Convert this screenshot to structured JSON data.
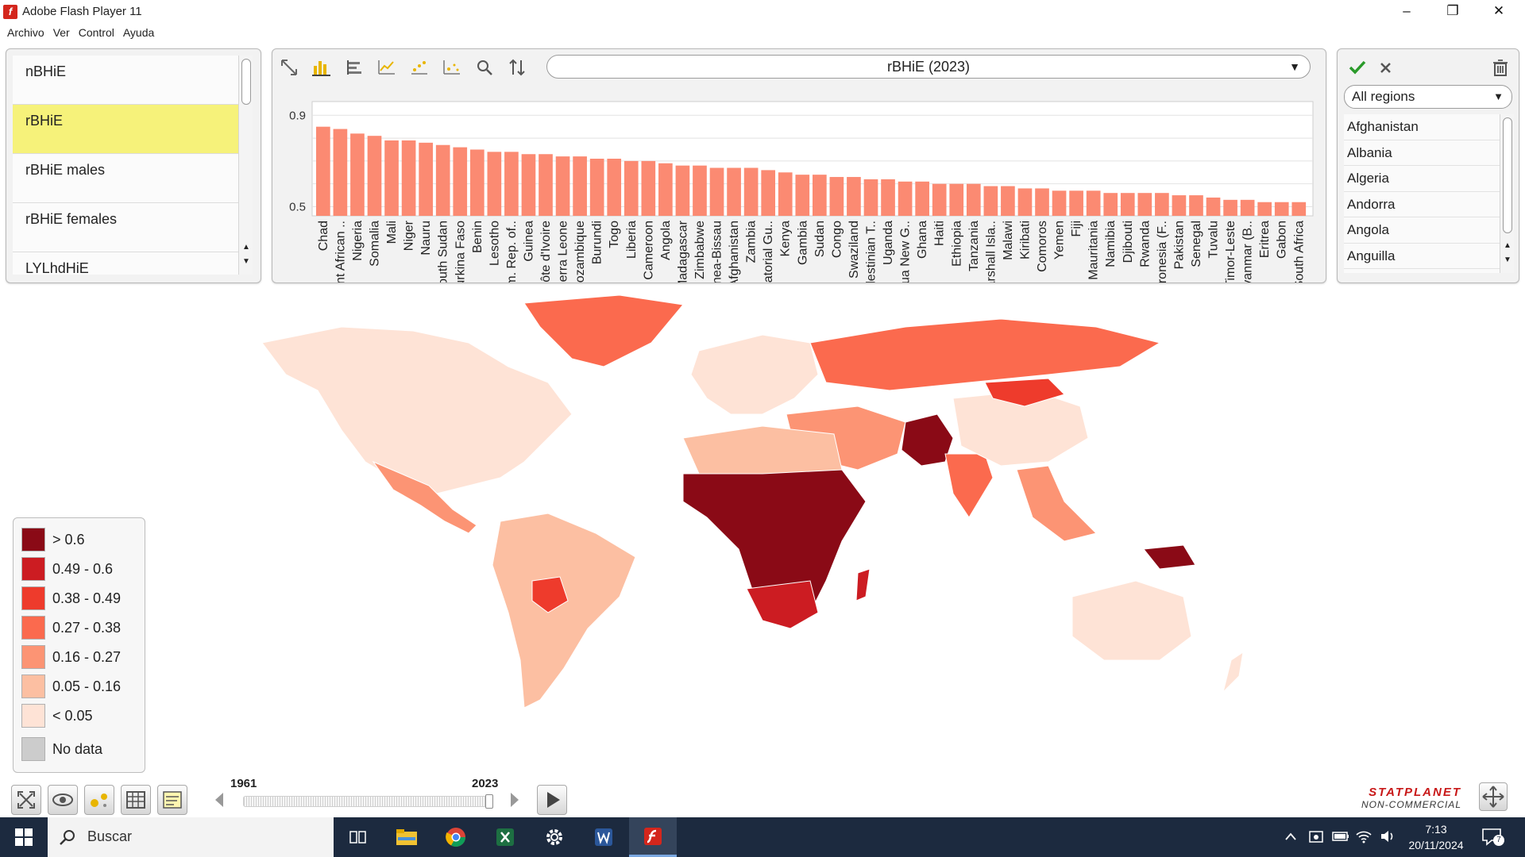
{
  "window": {
    "title": "Adobe Flash Player 11",
    "app_icon_glyph": "f"
  },
  "menu": [
    "Archivo",
    "Ver",
    "Control",
    "Ayuda"
  ],
  "indicators": {
    "items": [
      "nBHiE",
      "rBHiE",
      "rBHiE males",
      "rBHiE females",
      "LYLhdHiE"
    ],
    "selected_index": 1
  },
  "chart_toolbar": {
    "indicator_label": "rBHiE (2023)",
    "icons": [
      "fit-icon",
      "bar-chart-icon",
      "horizontal-bar-icon",
      "line-chart-icon",
      "scatter-icon",
      "bubble-icon",
      "zoom-icon",
      "sort-icon"
    ],
    "active_icon": "bar-chart-icon"
  },
  "chart_data": {
    "type": "bar",
    "title": "",
    "xlabel": "",
    "ylabel": "",
    "y_ticks": [
      "0.9",
      "0.5"
    ],
    "ylim": [
      0.46,
      0.96
    ],
    "categories": [
      "Chad",
      "Cent African ..",
      "Nigeria",
      "Somalia",
      "Mali",
      "Niger",
      "Nauru",
      "South Sudan",
      "Burkina Faso",
      "Benin",
      "Lesotho",
      "Dem. Rep. of..",
      "Guinea",
      "Côte d'Ivoire",
      "Sierra Leone",
      "Mozambique",
      "Burundi",
      "Togo",
      "Liberia",
      "Cameroon",
      "Angola",
      "Madagascar",
      "Zimbabwe",
      "Guinea-Bissau",
      "Afghanistan",
      "Zambia",
      "Equatorial Gu..",
      "Kenya",
      "Gambia",
      "Sudan",
      "Congo",
      "Swaziland",
      "Palestinian T..",
      "Uganda",
      "Papua New G..",
      "Ghana",
      "Haiti",
      "Ethiopia",
      "Tanzania",
      "Marshall Isla..",
      "Malawi",
      "Kiribati",
      "Comoros",
      "Yemen",
      "Fiji",
      "Mauritania",
      "Namibia",
      "Djibouti",
      "Rwanda",
      "Micronesia (F..",
      "Pakistan",
      "Senegal",
      "Tuvalu",
      "Timor-Leste",
      "Myanmar (B..",
      "Eritrea",
      "Gabon",
      "South Africa"
    ],
    "values": [
      0.85,
      0.84,
      0.82,
      0.81,
      0.79,
      0.79,
      0.78,
      0.77,
      0.76,
      0.75,
      0.74,
      0.74,
      0.73,
      0.73,
      0.72,
      0.72,
      0.71,
      0.71,
      0.7,
      0.7,
      0.69,
      0.68,
      0.68,
      0.67,
      0.67,
      0.67,
      0.66,
      0.65,
      0.64,
      0.64,
      0.63,
      0.63,
      0.62,
      0.62,
      0.61,
      0.61,
      0.6,
      0.6,
      0.6,
      0.59,
      0.59,
      0.58,
      0.58,
      0.57,
      0.57,
      0.57,
      0.56,
      0.56,
      0.56,
      0.56,
      0.55,
      0.55,
      0.54,
      0.53,
      0.53,
      0.52,
      0.52,
      0.52
    ],
    "bar_color": "#fb8a72"
  },
  "regions": {
    "selected": "All regions",
    "items": [
      "Afghanistan",
      "Albania",
      "Algeria",
      "Andorra",
      "Angola",
      "Anguilla"
    ]
  },
  "legend": {
    "items": [
      {
        "label": "> 0.6",
        "color": "#8a0a16"
      },
      {
        "label": "0.49 - 0.6",
        "color": "#cc1c22"
      },
      {
        "label": "0.38 - 0.49",
        "color": "#ee3b2c"
      },
      {
        "label": "0.27 - 0.38",
        "color": "#fb6a4e"
      },
      {
        "label": "0.16 - 0.27",
        "color": "#fc9474"
      },
      {
        "label": "0.05 - 0.16",
        "color": "#fcbfa2"
      },
      {
        "label": "< 0.05",
        "color": "#fee3d6"
      },
      {
        "label": "No data",
        "color": "#cccccc"
      }
    ]
  },
  "timeline": {
    "start": "1961",
    "end": "2023",
    "position": 1.0
  },
  "logo": {
    "line1": "STATPLANET",
    "line2": "NON-COMMERCIAL"
  },
  "taskbar": {
    "search_placeholder": "Buscar",
    "time": "7:13",
    "date": "20/11/2024",
    "notifications": "7"
  }
}
